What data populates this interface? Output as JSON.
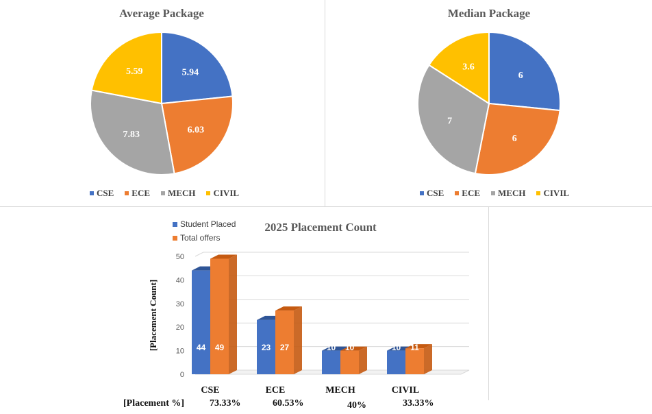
{
  "colors": {
    "cse": "#4472c4",
    "ece": "#ed7d31",
    "mech": "#a5a5a5",
    "civil": "#ffc000",
    "cse_dark": "#2f5597",
    "ece_dark": "#c55a11"
  },
  "legend_labels": [
    "CSE",
    "ECE",
    "MECH",
    "CIVIL"
  ],
  "chart_data": [
    {
      "type": "pie",
      "title": "Average Package",
      "categories": [
        "CSE",
        "ECE",
        "MECH",
        "CIVIL"
      ],
      "values": [
        5.94,
        6.03,
        7.83,
        5.59
      ],
      "labels": [
        "5.94",
        "6.03",
        "7.83",
        "5.59"
      ]
    },
    {
      "type": "pie",
      "title": "Median Package",
      "categories": [
        "CSE",
        "ECE",
        "MECH",
        "CIVIL"
      ],
      "values": [
        6,
        6,
        7,
        3.6
      ],
      "labels": [
        "6",
        "6",
        "7",
        "3.6"
      ]
    },
    {
      "type": "bar",
      "title": "2025 Placement Count",
      "ylabel": "[Placement Count]",
      "categories": [
        "CSE",
        "ECE",
        "MECH",
        "CIVIL"
      ],
      "ylim": [
        0,
        50
      ],
      "yticks": [
        "0",
        "10",
        "20",
        "30",
        "40",
        "50"
      ],
      "series": [
        {
          "name": "Student Placed",
          "values": [
            44,
            23,
            10,
            10
          ]
        },
        {
          "name": "Total offers",
          "values": [
            49,
            27,
            10,
            11
          ]
        }
      ],
      "row_label": "[Placement %]",
      "percentages": [
        "73.33%",
        "60.53%",
        "40%",
        "33.33%"
      ]
    }
  ]
}
